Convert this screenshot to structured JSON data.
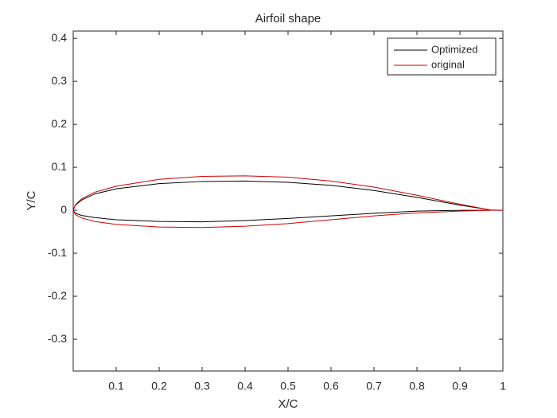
{
  "chart_data": {
    "type": "line",
    "title": "Airfoil shape",
    "x_label": "X/C",
    "y_label": "Y/C",
    "x": [
      1,
      0.97,
      0.9,
      0.8,
      0.7,
      0.6,
      0.5,
      0.4,
      0.3,
      0.2,
      0.1,
      0.05,
      0.02,
      0.005,
      0,
      0.005,
      0.02,
      0.05,
      0.1,
      0.2,
      0.3,
      0.4,
      0.5,
      0.6,
      0.7,
      0.8,
      0.9,
      0.97,
      1
    ],
    "series": [
      {
        "name": "Optimized",
        "color": "#000000",
        "values": [
          null,
          0.001,
          0.012,
          0.03,
          0.046,
          0.058,
          0.065,
          0.068,
          0.067,
          0.062,
          0.05,
          0.038,
          0.024,
          0.012,
          0,
          -0.007,
          -0.012,
          -0.017,
          -0.022,
          -0.026,
          -0.027,
          -0.024,
          -0.019,
          -0.013,
          -0.007,
          -0.002,
          0,
          0,
          null
        ]
      },
      {
        "name": "original",
        "color": "#cc0000",
        "values": [
          0,
          0.001,
          0.014,
          0.035,
          0.054,
          0.068,
          0.077,
          0.08,
          0.079,
          0.072,
          0.056,
          0.042,
          0.027,
          0.013,
          0,
          -0.01,
          -0.018,
          -0.026,
          -0.033,
          -0.039,
          -0.04,
          -0.037,
          -0.031,
          -0.022,
          -0.013,
          -0.006,
          -0.002,
          0,
          0
        ]
      }
    ],
    "xlim": [
      0,
      1
    ],
    "xticks": [
      0.1,
      0.2,
      0.3,
      0.4,
      0.5,
      0.6,
      0.7,
      0.8,
      0.9,
      1
    ],
    "ylim": [
      -0.374,
      0.417
    ],
    "yticks": [
      -0.3,
      -0.2,
      -0.1,
      0,
      0.1,
      0.2,
      0.3,
      0.4
    ],
    "legend": "northeast"
  }
}
